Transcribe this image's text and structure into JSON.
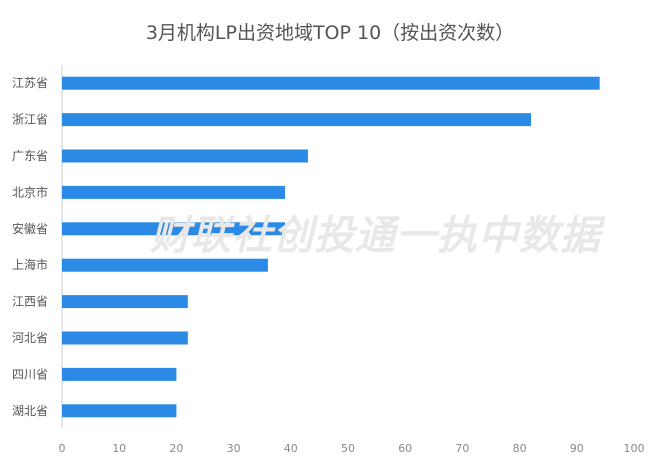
{
  "chart_data": {
    "type": "bar",
    "orientation": "horizontal",
    "title": "3月机构LP出资地域TOP 10（按出资次数）",
    "categories": [
      "江苏省",
      "浙江省",
      "广东省",
      "北京市",
      "安徽省",
      "上海市",
      "江西省",
      "河北省",
      "四川省",
      "湖北省"
    ],
    "values": [
      94,
      82,
      43,
      39,
      39,
      36,
      22,
      22,
      20,
      20
    ],
    "xlim": [
      0,
      100
    ],
    "xticks": [
      "0",
      "10",
      "20",
      "30",
      "40",
      "50",
      "60",
      "70",
      "80",
      "90",
      "100"
    ],
    "xlabel": "",
    "ylabel": "",
    "grid": false,
    "bar_color": "#2b8ae6"
  },
  "watermark": "财联社创投通一执中数据"
}
